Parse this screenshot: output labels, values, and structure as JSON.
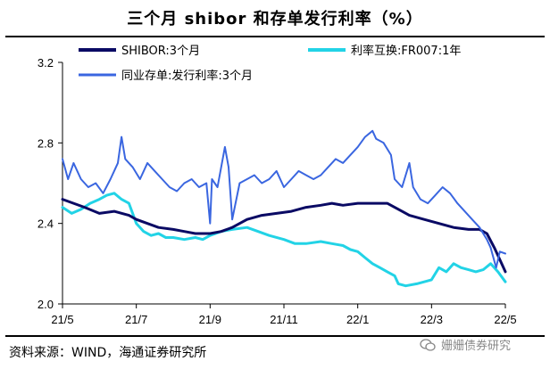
{
  "title": "三个月 shibor 和存单发行利率（%）",
  "footer": "资料来源：WIND，海通证券研究所",
  "watermark": "姗姗债券研究",
  "colors": {
    "shibor": "#0a0a64",
    "swap": "#22d3e6",
    "cd": "#3a66e0",
    "axis": "#000000"
  },
  "chart_data": {
    "type": "line",
    "title": "三个月 shibor 和存单发行利率（%）",
    "xlabel": "",
    "ylabel": "",
    "ylim": [
      2.0,
      3.2
    ],
    "yticks": [
      "2.0",
      "2.4",
      "2.8",
      "3.2"
    ],
    "x_ticks": [
      "21/5",
      "21/7",
      "21/9",
      "21/11",
      "22/1",
      "22/3",
      "22/5"
    ],
    "x_range_months": [
      0,
      12
    ],
    "series": [
      {
        "name": "SHIBOR:3个月",
        "color": "#0a0a64",
        "width": 3,
        "points": [
          [
            0,
            2.52
          ],
          [
            0.3,
            2.5
          ],
          [
            0.6,
            2.48
          ],
          [
            1,
            2.45
          ],
          [
            1.4,
            2.46
          ],
          [
            1.8,
            2.44
          ],
          [
            2,
            2.42
          ],
          [
            2.3,
            2.4
          ],
          [
            2.6,
            2.38
          ],
          [
            3,
            2.37
          ],
          [
            3.3,
            2.36
          ],
          [
            3.6,
            2.35
          ],
          [
            4,
            2.35
          ],
          [
            4.3,
            2.36
          ],
          [
            4.6,
            2.38
          ],
          [
            5,
            2.42
          ],
          [
            5.4,
            2.44
          ],
          [
            5.8,
            2.45
          ],
          [
            6.2,
            2.46
          ],
          [
            6.6,
            2.48
          ],
          [
            7,
            2.49
          ],
          [
            7.3,
            2.5
          ],
          [
            7.6,
            2.49
          ],
          [
            8,
            2.5
          ],
          [
            8.4,
            2.5
          ],
          [
            8.8,
            2.5
          ],
          [
            9,
            2.48
          ],
          [
            9.2,
            2.46
          ],
          [
            9.4,
            2.44
          ],
          [
            9.8,
            2.42
          ],
          [
            10.2,
            2.4
          ],
          [
            10.6,
            2.38
          ],
          [
            11,
            2.37
          ],
          [
            11.3,
            2.37
          ],
          [
            11.5,
            2.35
          ],
          [
            11.7,
            2.28
          ],
          [
            11.85,
            2.22
          ],
          [
            12,
            2.16
          ]
        ]
      },
      {
        "name": "利率互换:FR007:1年",
        "color": "#22d3e6",
        "width": 3,
        "points": [
          [
            0,
            2.48
          ],
          [
            0.25,
            2.45
          ],
          [
            0.5,
            2.47
          ],
          [
            0.75,
            2.5
          ],
          [
            1,
            2.52
          ],
          [
            1.2,
            2.54
          ],
          [
            1.4,
            2.55
          ],
          [
            1.6,
            2.52
          ],
          [
            1.8,
            2.5
          ],
          [
            2,
            2.4
          ],
          [
            2.2,
            2.36
          ],
          [
            2.4,
            2.34
          ],
          [
            2.6,
            2.35
          ],
          [
            2.8,
            2.33
          ],
          [
            3,
            2.33
          ],
          [
            3.3,
            2.32
          ],
          [
            3.6,
            2.33
          ],
          [
            3.8,
            2.32
          ],
          [
            4,
            2.34
          ],
          [
            4.3,
            2.36
          ],
          [
            4.6,
            2.37
          ],
          [
            5,
            2.38
          ],
          [
            5.3,
            2.36
          ],
          [
            5.6,
            2.34
          ],
          [
            6,
            2.32
          ],
          [
            6.3,
            2.3
          ],
          [
            6.6,
            2.3
          ],
          [
            7,
            2.31
          ],
          [
            7.3,
            2.3
          ],
          [
            7.6,
            2.29
          ],
          [
            7.8,
            2.27
          ],
          [
            8,
            2.26
          ],
          [
            8.2,
            2.23
          ],
          [
            8.4,
            2.2
          ],
          [
            8.6,
            2.18
          ],
          [
            8.8,
            2.16
          ],
          [
            9,
            2.14
          ],
          [
            9.1,
            2.1
          ],
          [
            9.3,
            2.09
          ],
          [
            9.6,
            2.1
          ],
          [
            9.8,
            2.11
          ],
          [
            10,
            2.12
          ],
          [
            10.2,
            2.18
          ],
          [
            10.4,
            2.16
          ],
          [
            10.6,
            2.2
          ],
          [
            10.8,
            2.18
          ],
          [
            11,
            2.17
          ],
          [
            11.2,
            2.16
          ],
          [
            11.4,
            2.17
          ],
          [
            11.6,
            2.2
          ],
          [
            11.8,
            2.16
          ],
          [
            12,
            2.11
          ]
        ]
      },
      {
        "name": "同业存单:发行利率:3个月",
        "color": "#3a66e0",
        "width": 2,
        "points": [
          [
            0,
            2.72
          ],
          [
            0.15,
            2.62
          ],
          [
            0.3,
            2.7
          ],
          [
            0.5,
            2.62
          ],
          [
            0.7,
            2.58
          ],
          [
            0.9,
            2.6
          ],
          [
            1.1,
            2.55
          ],
          [
            1.3,
            2.62
          ],
          [
            1.5,
            2.7
          ],
          [
            1.6,
            2.83
          ],
          [
            1.7,
            2.72
          ],
          [
            1.9,
            2.68
          ],
          [
            2.1,
            2.62
          ],
          [
            2.3,
            2.7
          ],
          [
            2.5,
            2.66
          ],
          [
            2.7,
            2.62
          ],
          [
            2.9,
            2.58
          ],
          [
            3.1,
            2.56
          ],
          [
            3.3,
            2.6
          ],
          [
            3.5,
            2.62
          ],
          [
            3.7,
            2.58
          ],
          [
            3.9,
            2.6
          ],
          [
            4,
            2.4
          ],
          [
            4.05,
            2.62
          ],
          [
            4.2,
            2.58
          ],
          [
            4.4,
            2.78
          ],
          [
            4.5,
            2.68
          ],
          [
            4.6,
            2.42
          ],
          [
            4.8,
            2.6
          ],
          [
            5,
            2.62
          ],
          [
            5.2,
            2.64
          ],
          [
            5.4,
            2.6
          ],
          [
            5.6,
            2.62
          ],
          [
            5.8,
            2.66
          ],
          [
            6,
            2.58
          ],
          [
            6.2,
            2.62
          ],
          [
            6.4,
            2.66
          ],
          [
            6.6,
            2.64
          ],
          [
            6.8,
            2.62
          ],
          [
            7,
            2.64
          ],
          [
            7.2,
            2.68
          ],
          [
            7.4,
            2.72
          ],
          [
            7.6,
            2.7
          ],
          [
            7.8,
            2.74
          ],
          [
            8,
            2.78
          ],
          [
            8.2,
            2.83
          ],
          [
            8.4,
            2.86
          ],
          [
            8.5,
            2.82
          ],
          [
            8.7,
            2.8
          ],
          [
            8.9,
            2.74
          ],
          [
            9,
            2.62
          ],
          [
            9.2,
            2.58
          ],
          [
            9.4,
            2.7
          ],
          [
            9.5,
            2.58
          ],
          [
            9.7,
            2.52
          ],
          [
            9.9,
            2.5
          ],
          [
            10.1,
            2.54
          ],
          [
            10.3,
            2.58
          ],
          [
            10.5,
            2.55
          ],
          [
            10.7,
            2.5
          ],
          [
            10.9,
            2.46
          ],
          [
            11.1,
            2.42
          ],
          [
            11.3,
            2.38
          ],
          [
            11.5,
            2.32
          ],
          [
            11.6,
            2.28
          ],
          [
            11.75,
            2.18
          ],
          [
            11.85,
            2.26
          ],
          [
            12,
            2.25
          ]
        ]
      }
    ]
  }
}
